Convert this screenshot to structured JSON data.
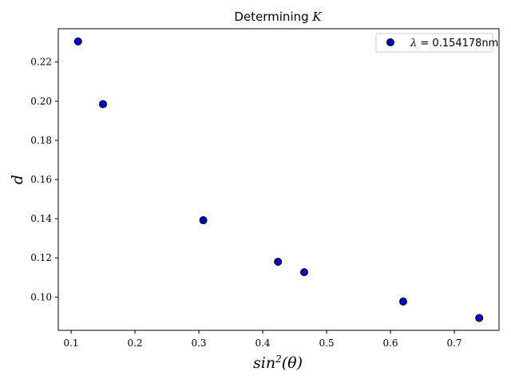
{
  "chart_data": {
    "type": "scatter",
    "title": {
      "prefix": "Determining ",
      "symbol": "K"
    },
    "xlabel": {
      "base": "sin",
      "sup": "2",
      "arg": "(θ)"
    },
    "ylabel": "d",
    "xlim": [
      0.08,
      0.77
    ],
    "ylim": [
      0.083,
      0.237
    ],
    "xticks": [
      0.1,
      0.2,
      0.3,
      0.4,
      0.5,
      0.6,
      0.7
    ],
    "xtick_labels": [
      "0.1",
      "0.2",
      "0.3",
      "0.4",
      "0.5",
      "0.6",
      "0.7"
    ],
    "yticks": [
      0.1,
      0.12,
      0.14,
      0.16,
      0.18,
      0.2,
      0.22
    ],
    "ytick_labels": [
      "0.10",
      "0.12",
      "0.14",
      "0.16",
      "0.18",
      "0.20",
      "0.22"
    ],
    "grid": false,
    "legend_position": "top-right",
    "series": [
      {
        "name": {
          "symbol": "λ",
          "text": " = 0.154178nm"
        },
        "color": "#0000cc",
        "edge_color": "#000000",
        "x": [
          0.111,
          0.15,
          0.307,
          0.424,
          0.465,
          0.62,
          0.739
        ],
        "y": [
          0.2305,
          0.1985,
          0.1392,
          0.118,
          0.1127,
          0.0977,
          0.0893
        ]
      }
    ]
  }
}
